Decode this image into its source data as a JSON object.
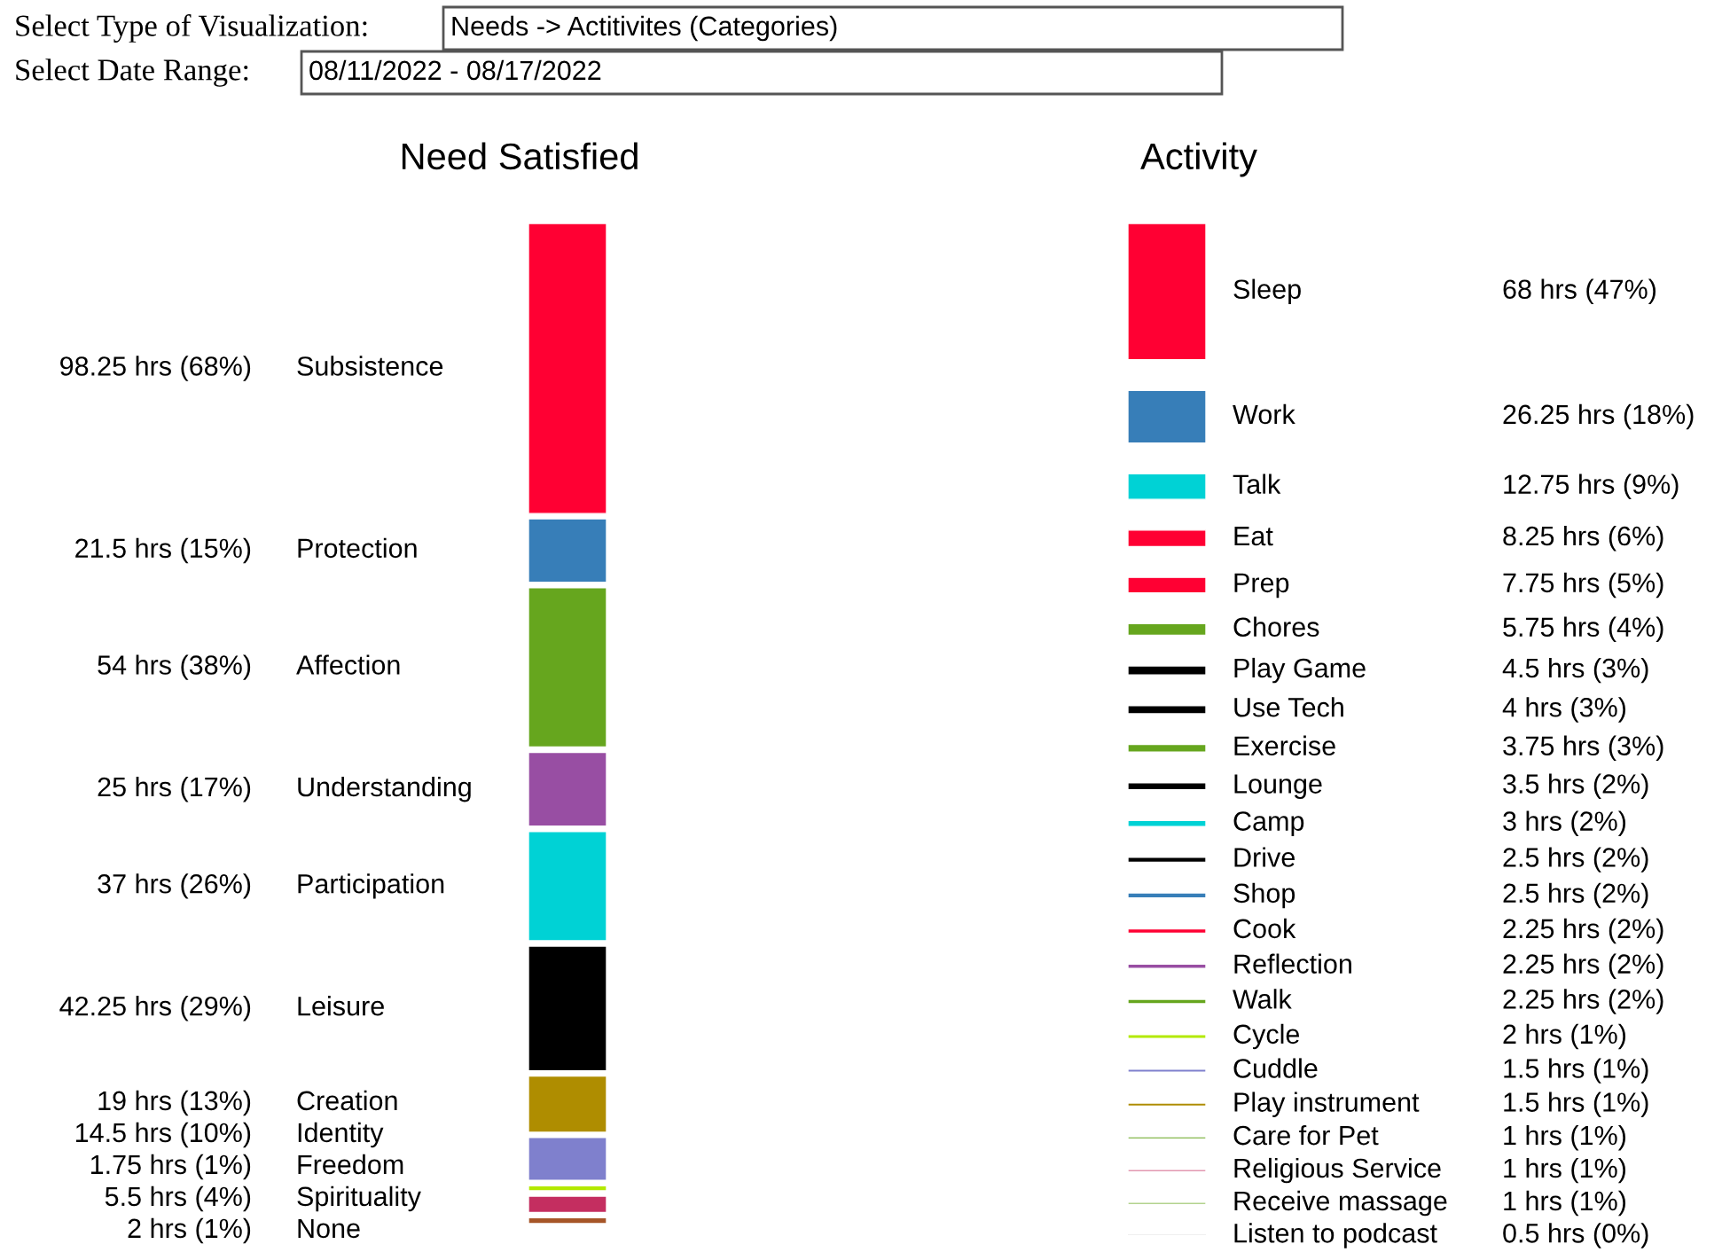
{
  "chart_data": [
    {
      "type": "other",
      "title": "Need Satisfied",
      "annotations": [
        "Select Type of Visualization:",
        "Needs -> Actitivites (Categories)",
        "Select Date Range:",
        "08/11/2022 - 08/17/2022"
      ],
      "categories": [
        "Subsistence",
        "Protection",
        "Affection",
        "Understanding",
        "Participation",
        "Leisure",
        "Creation",
        "Identity",
        "Freedom",
        "Spirituality",
        "None"
      ],
      "values": [
        98.25,
        21.5,
        54,
        25,
        37,
        42.25,
        19,
        14.5,
        1.75,
        5.5,
        2
      ],
      "value_labels": [
        "98.25 hrs (68%)",
        "21.5 hrs (15%)",
        "54 hrs (38%)",
        "25 hrs (17%)",
        "37 hrs (26%)",
        "42.25 hrs (29%)",
        "19 hrs (13%)",
        "14.5 hrs (10%)",
        "1.75 hrs (1%)",
        "5.5 hrs (4%)",
        "2 hrs (1%)"
      ],
      "colors": [
        "#ff0033",
        "#377eb8",
        "#66a61e",
        "#984ea3",
        "#00d2d5",
        "#000000",
        "#af8d00",
        "#7f80cd",
        "#b3e900",
        "#c42e60",
        "#a65628"
      ]
    },
    {
      "type": "other",
      "title": "Activity",
      "categories": [
        "Sleep",
        "Work",
        "Talk",
        "Eat",
        "Prep",
        "Chores",
        "Play Game",
        "Use Tech",
        "Exercise",
        "Lounge",
        "Camp",
        "Drive",
        "Shop",
        "Cook",
        "Reflection",
        "Walk",
        "Cycle",
        "Cuddle",
        "Play instrument",
        "Care for Pet",
        "Religious Service",
        "Receive massage",
        "Listen to podcast"
      ],
      "values": [
        68,
        26.25,
        12.75,
        8.25,
        7.75,
        5.75,
        4.5,
        4,
        3.75,
        3.5,
        3,
        2.5,
        2.5,
        2.25,
        2.25,
        2.25,
        2,
        1.5,
        1.5,
        1,
        1,
        1,
        0.5
      ],
      "value_labels": [
        "68 hrs (47%)",
        "26.25 hrs (18%)",
        "12.75 hrs (9%)",
        "8.25 hrs (6%)",
        "7.75 hrs (5%)",
        "5.75 hrs (4%)",
        "4.5 hrs (3%)",
        "4 hrs (3%)",
        "3.75 hrs (3%)",
        "3.5 hrs (2%)",
        "3 hrs (2%)",
        "2.5 hrs (2%)",
        "2.5 hrs (2%)",
        "2.25 hrs (2%)",
        "2.25 hrs (2%)",
        "2.25 hrs (2%)",
        "2 hrs (1%)",
        "1.5 hrs (1%)",
        "1.5 hrs (1%)",
        "1 hrs (1%)",
        "1 hrs (1%)",
        "1 hrs (1%)",
        "0.5 hrs (0%)"
      ],
      "colors": [
        "#ff0033",
        "#377eb8",
        "#00d2d5",
        "#ff0033",
        "#ff0033",
        "#66a61e",
        "#000000",
        "#000000",
        "#66a61e",
        "#000000",
        "#00d2d5",
        "#000000",
        "#377eb8",
        "#ff0033",
        "#984ea3",
        "#66a61e",
        "#b3e900",
        "#7f80cd",
        "#af8d00",
        "#66a61e",
        "#c42e60",
        "#66a61e",
        "#000000"
      ]
    }
  ]
}
